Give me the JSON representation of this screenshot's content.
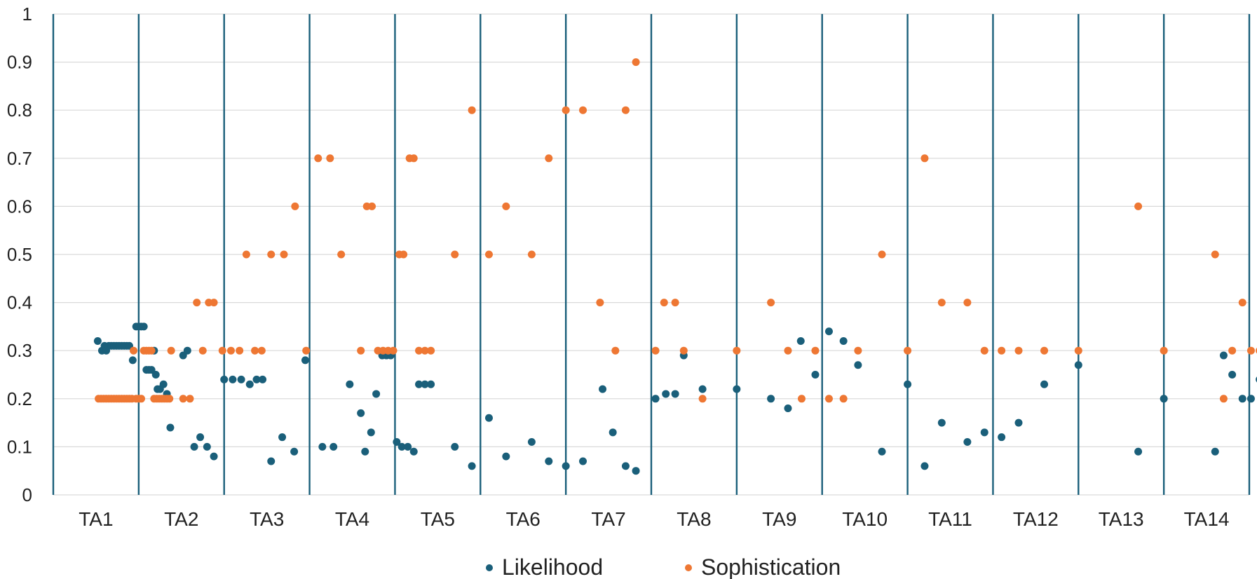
{
  "chart_data": {
    "type": "scatter",
    "title": "",
    "xlabel": "",
    "ylabel": "",
    "ylim": [
      0,
      1
    ],
    "yticks": [
      "0",
      "0.1",
      "0.2",
      "0.3",
      "0.4",
      "0.5",
      "0.6",
      "0.7",
      "0.8",
      "0.9",
      "1"
    ],
    "grid": true,
    "legend_position": "bottom",
    "colors": {
      "likelihood": "#1a5f7a",
      "sophistication": "#ee7733",
      "divider": "#1a5f7a",
      "grid": "#d9d9d9"
    },
    "categories": [
      "TA1",
      "TA2",
      "TA3",
      "TA4",
      "TA5",
      "TA6",
      "TA7",
      "TA8",
      "TA9",
      "TA10",
      "TA11",
      "TA12",
      "TA13",
      "TA14"
    ],
    "series": [
      {
        "name": "Likelihood",
        "points": [
          [
            0.52,
            0.32
          ],
          [
            0.57,
            0.3
          ],
          [
            0.6,
            0.31
          ],
          [
            0.62,
            0.3
          ],
          [
            0.65,
            0.31
          ],
          [
            0.68,
            0.31
          ],
          [
            0.71,
            0.31
          ],
          [
            0.74,
            0.31
          ],
          [
            0.77,
            0.31
          ],
          [
            0.8,
            0.31
          ],
          [
            0.83,
            0.31
          ],
          [
            0.86,
            0.31
          ],
          [
            0.89,
            0.31
          ],
          [
            0.93,
            0.28
          ],
          [
            0.97,
            0.35
          ],
          [
            1.0,
            0.35
          ],
          [
            1.03,
            0.35
          ],
          [
            1.06,
            0.35
          ],
          [
            1.09,
            0.26
          ],
          [
            1.12,
            0.26
          ],
          [
            1.15,
            0.26
          ],
          [
            1.18,
            0.3
          ],
          [
            1.2,
            0.25
          ],
          [
            1.22,
            0.22
          ],
          [
            1.25,
            0.22
          ],
          [
            1.29,
            0.23
          ],
          [
            1.33,
            0.21
          ],
          [
            1.37,
            0.14
          ],
          [
            1.52,
            0.29
          ],
          [
            1.57,
            0.3
          ],
          [
            1.65,
            0.1
          ],
          [
            1.72,
            0.12
          ],
          [
            1.8,
            0.1
          ],
          [
            1.88,
            0.08
          ],
          [
            2.0,
            0.24
          ],
          [
            2.1,
            0.24
          ],
          [
            2.2,
            0.24
          ],
          [
            2.3,
            0.23
          ],
          [
            2.38,
            0.24
          ],
          [
            2.45,
            0.24
          ],
          [
            2.55,
            0.07
          ],
          [
            2.68,
            0.12
          ],
          [
            2.82,
            0.09
          ],
          [
            2.95,
            0.28
          ],
          [
            3.15,
            0.1
          ],
          [
            3.28,
            0.1
          ],
          [
            3.47,
            0.23
          ],
          [
            3.6,
            0.17
          ],
          [
            3.65,
            0.09
          ],
          [
            3.72,
            0.13
          ],
          [
            3.78,
            0.21
          ],
          [
            3.85,
            0.29
          ],
          [
            3.9,
            0.29
          ],
          [
            3.95,
            0.29
          ],
          [
            4.02,
            0.11
          ],
          [
            4.08,
            0.1
          ],
          [
            4.15,
            0.1
          ],
          [
            4.22,
            0.09
          ],
          [
            4.28,
            0.23
          ],
          [
            4.35,
            0.23
          ],
          [
            4.42,
            0.23
          ],
          [
            4.7,
            0.1
          ],
          [
            4.9,
            0.06
          ],
          [
            5.1,
            0.16
          ],
          [
            5.3,
            0.08
          ],
          [
            5.6,
            0.11
          ],
          [
            5.8,
            0.07
          ],
          [
            6.0,
            0.06
          ],
          [
            6.2,
            0.07
          ],
          [
            6.43,
            0.22
          ],
          [
            6.55,
            0.13
          ],
          [
            6.7,
            0.06
          ],
          [
            6.82,
            0.05
          ],
          [
            7.05,
            0.2
          ],
          [
            7.17,
            0.21
          ],
          [
            7.28,
            0.21
          ],
          [
            7.38,
            0.29
          ],
          [
            7.6,
            0.22
          ],
          [
            8.0,
            0.22
          ],
          [
            8.4,
            0.2
          ],
          [
            8.6,
            0.18
          ],
          [
            8.75,
            0.32
          ],
          [
            8.92,
            0.25
          ],
          [
            9.08,
            0.34
          ],
          [
            9.25,
            0.32
          ],
          [
            9.42,
            0.27
          ],
          [
            9.7,
            0.09
          ],
          [
            10.0,
            0.23
          ],
          [
            10.2,
            0.06
          ],
          [
            10.4,
            0.15
          ],
          [
            10.7,
            0.11
          ],
          [
            10.9,
            0.13
          ],
          [
            11.1,
            0.12
          ],
          [
            11.3,
            0.15
          ],
          [
            11.6,
            0.23
          ],
          [
            12.0,
            0.27
          ],
          [
            12.7,
            0.09
          ],
          [
            13.0,
            0.2
          ],
          [
            13.6,
            0.09
          ],
          [
            13.7,
            0.29
          ],
          [
            13.8,
            0.25
          ],
          [
            13.92,
            0.2
          ],
          [
            14.02,
            0.2
          ],
          [
            14.12,
            0.24
          ],
          [
            14.22,
            0.2
          ],
          [
            14.33,
            0.3
          ],
          [
            14.43,
            0.13
          ]
        ]
      },
      {
        "name": "Sophistication",
        "points": [
          [
            0.53,
            0.2
          ],
          [
            0.56,
            0.2
          ],
          [
            0.59,
            0.2
          ],
          [
            0.62,
            0.2
          ],
          [
            0.65,
            0.2
          ],
          [
            0.68,
            0.2
          ],
          [
            0.71,
            0.2
          ],
          [
            0.74,
            0.2
          ],
          [
            0.77,
            0.2
          ],
          [
            0.8,
            0.2
          ],
          [
            0.83,
            0.2
          ],
          [
            0.86,
            0.2
          ],
          [
            0.89,
            0.2
          ],
          [
            0.92,
            0.2
          ],
          [
            0.94,
            0.3
          ],
          [
            0.97,
            0.2
          ],
          [
            1.0,
            0.2
          ],
          [
            1.03,
            0.2
          ],
          [
            1.06,
            0.3
          ],
          [
            1.09,
            0.3
          ],
          [
            1.12,
            0.3
          ],
          [
            1.15,
            0.3
          ],
          [
            1.18,
            0.2
          ],
          [
            1.21,
            0.2
          ],
          [
            1.24,
            0.2
          ],
          [
            1.27,
            0.2
          ],
          [
            1.3,
            0.2
          ],
          [
            1.33,
            0.2
          ],
          [
            1.36,
            0.2
          ],
          [
            1.38,
            0.3
          ],
          [
            1.52,
            0.2
          ],
          [
            1.6,
            0.2
          ],
          [
            1.68,
            0.4
          ],
          [
            1.75,
            0.3
          ],
          [
            1.82,
            0.4
          ],
          [
            1.88,
            0.4
          ],
          [
            1.98,
            0.3
          ],
          [
            2.08,
            0.3
          ],
          [
            2.18,
            0.3
          ],
          [
            2.26,
            0.5
          ],
          [
            2.36,
            0.3
          ],
          [
            2.44,
            0.3
          ],
          [
            2.55,
            0.5
          ],
          [
            2.7,
            0.5
          ],
          [
            2.83,
            0.6
          ],
          [
            2.96,
            0.3
          ],
          [
            3.1,
            0.7
          ],
          [
            3.24,
            0.7
          ],
          [
            3.37,
            0.5
          ],
          [
            3.6,
            0.3
          ],
          [
            3.67,
            0.6
          ],
          [
            3.73,
            0.6
          ],
          [
            3.8,
            0.3
          ],
          [
            3.86,
            0.3
          ],
          [
            3.92,
            0.3
          ],
          [
            3.98,
            0.3
          ],
          [
            4.05,
            0.5
          ],
          [
            4.1,
            0.5
          ],
          [
            4.17,
            0.7
          ],
          [
            4.22,
            0.7
          ],
          [
            4.28,
            0.3
          ],
          [
            4.35,
            0.3
          ],
          [
            4.42,
            0.3
          ],
          [
            4.7,
            0.5
          ],
          [
            4.9,
            0.8
          ],
          [
            5.1,
            0.5
          ],
          [
            5.3,
            0.6
          ],
          [
            5.6,
            0.5
          ],
          [
            5.8,
            0.7
          ],
          [
            6.0,
            0.8
          ],
          [
            6.2,
            0.8
          ],
          [
            6.4,
            0.4
          ],
          [
            6.58,
            0.3
          ],
          [
            6.7,
            0.8
          ],
          [
            6.82,
            0.9
          ],
          [
            7.05,
            0.3
          ],
          [
            7.15,
            0.4
          ],
          [
            7.28,
            0.4
          ],
          [
            7.38,
            0.3
          ],
          [
            7.6,
            0.2
          ],
          [
            8.0,
            0.3
          ],
          [
            8.4,
            0.4
          ],
          [
            8.6,
            0.3
          ],
          [
            8.76,
            0.2
          ],
          [
            8.92,
            0.3
          ],
          [
            9.08,
            0.2
          ],
          [
            9.25,
            0.2
          ],
          [
            9.42,
            0.3
          ],
          [
            9.7,
            0.5
          ],
          [
            10.0,
            0.3
          ],
          [
            10.2,
            0.7
          ],
          [
            10.4,
            0.4
          ],
          [
            10.7,
            0.4
          ],
          [
            10.9,
            0.3
          ],
          [
            11.1,
            0.3
          ],
          [
            11.3,
            0.3
          ],
          [
            11.6,
            0.3
          ],
          [
            12.0,
            0.3
          ],
          [
            12.7,
            0.6
          ],
          [
            13.0,
            0.3
          ],
          [
            13.6,
            0.5
          ],
          [
            13.7,
            0.2
          ],
          [
            13.8,
            0.3
          ],
          [
            13.92,
            0.4
          ],
          [
            14.02,
            0.3
          ],
          [
            14.12,
            0.3
          ],
          [
            14.22,
            0.4
          ],
          [
            14.32,
            0.2
          ],
          [
            14.43,
            0.4
          ]
        ]
      }
    ]
  }
}
